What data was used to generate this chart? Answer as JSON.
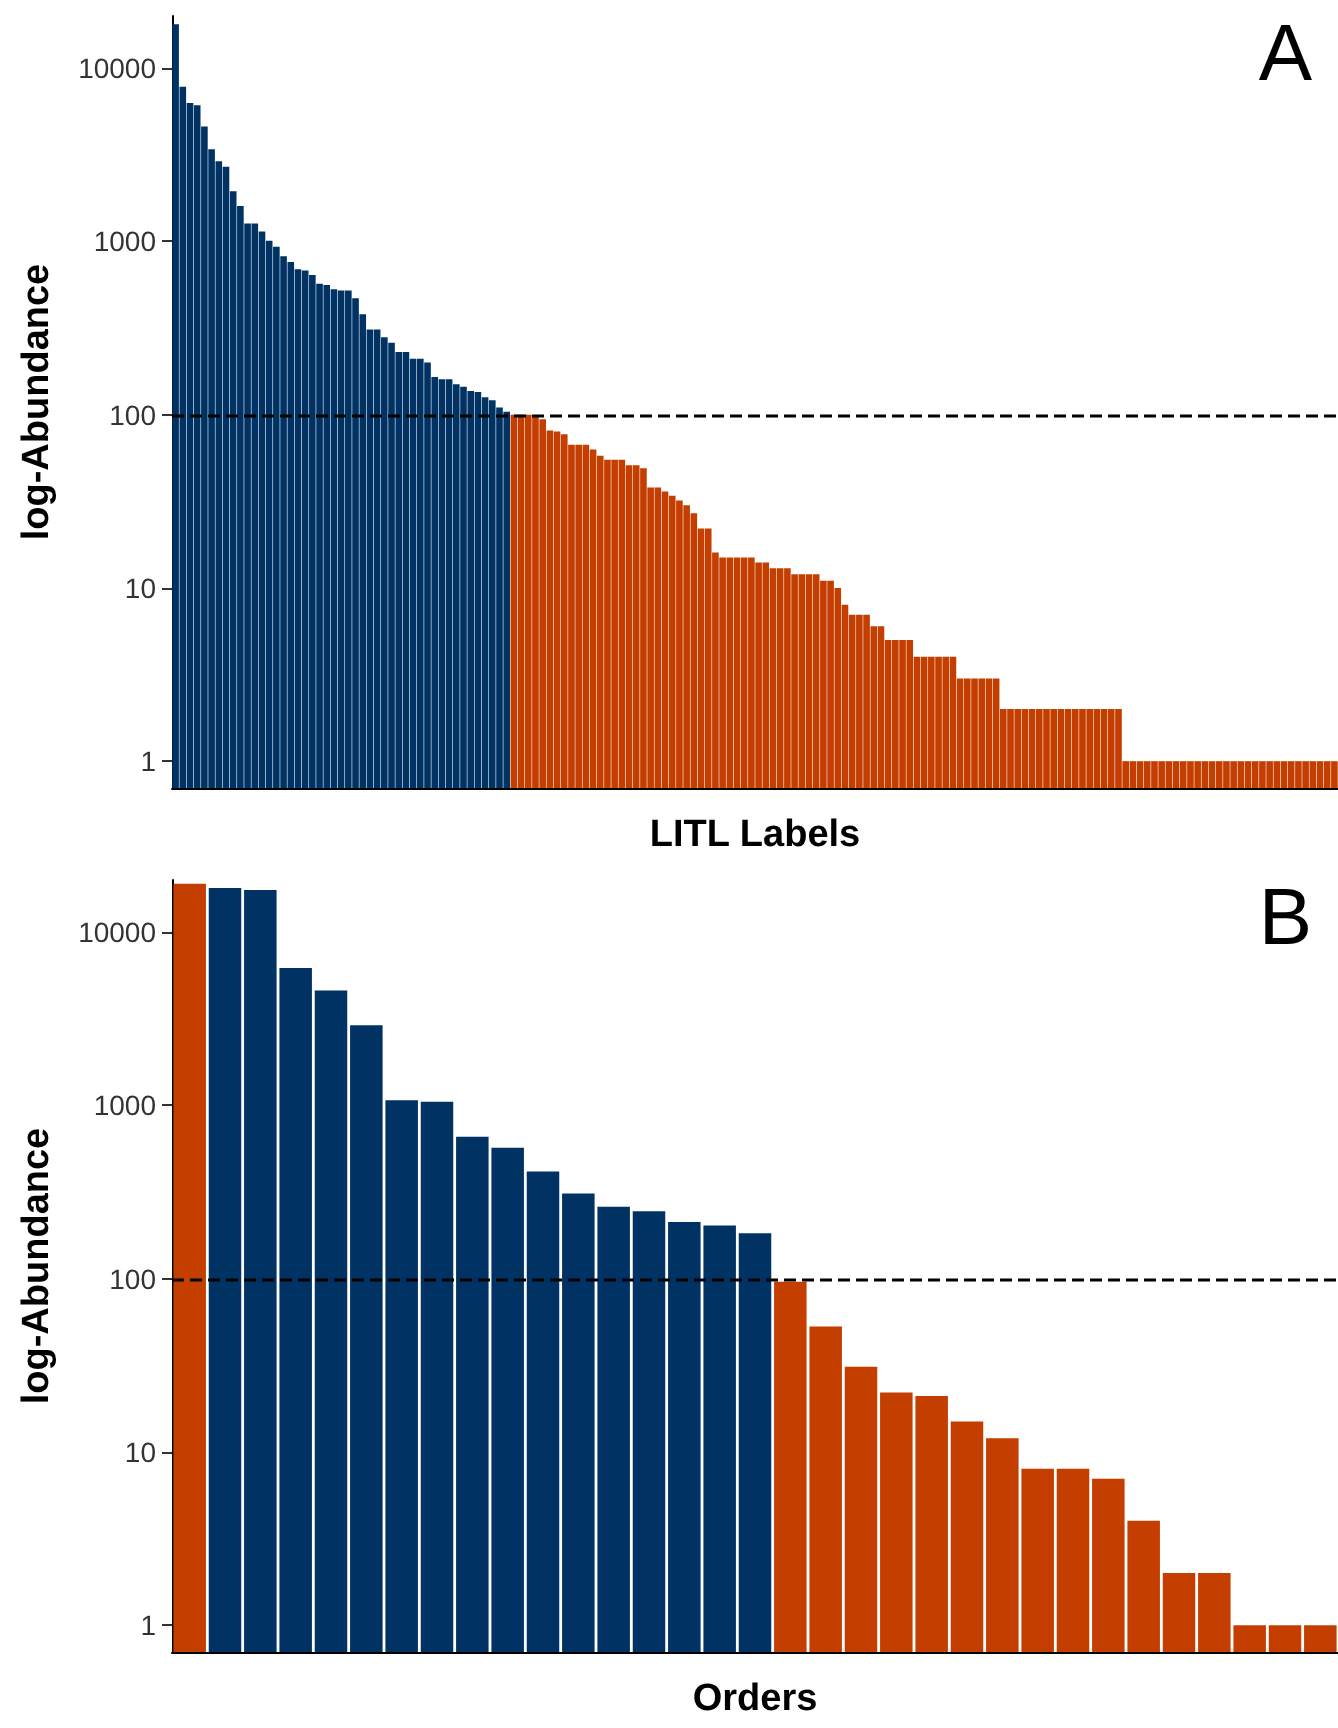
{
  "chart_data": [
    {
      "type": "bar",
      "title": "A",
      "xlabel": "LITL Labels",
      "ylabel": "log-Abundance",
      "log": true,
      "grid": false,
      "tick_labels": "y",
      "categories": [
        null,
        null,
        null,
        null,
        null,
        null,
        null,
        null,
        null,
        null,
        null,
        null,
        null,
        null,
        null,
        null,
        null,
        null,
        null,
        null,
        null,
        null,
        null,
        null,
        null,
        null,
        null,
        null,
        null,
        null,
        null,
        null,
        null,
        null,
        null,
        null,
        null,
        null,
        null,
        null,
        null,
        null,
        null,
        null,
        null,
        null,
        null,
        null,
        null,
        null,
        null,
        null,
        null,
        null,
        null,
        null,
        null,
        null,
        null,
        null,
        null,
        null,
        null,
        null,
        null,
        null,
        null,
        null,
        null,
        null,
        null,
        null,
        null,
        null,
        null,
        null,
        null,
        null,
        null,
        null,
        null,
        null,
        null,
        null,
        null,
        null,
        null,
        null,
        null,
        null,
        null,
        null,
        null,
        null,
        null,
        null,
        null,
        null,
        null,
        null,
        null,
        null,
        null,
        null,
        null,
        null,
        null,
        null,
        null,
        null,
        null,
        null,
        null,
        null,
        null,
        null,
        null,
        null,
        null,
        null,
        null,
        null,
        null,
        null,
        null,
        null,
        null,
        null,
        null,
        null,
        null,
        null,
        null,
        null,
        null,
        null,
        null,
        null,
        null,
        null,
        null,
        null,
        null,
        null,
        null,
        null,
        null,
        null,
        null,
        null,
        null,
        null,
        null,
        null,
        null,
        null,
        null,
        null,
        null,
        null,
        null,
        null
      ],
      "values": [
        17900,
        7800,
        6300,
        6100,
        4600,
        3400,
        2900,
        2700,
        1950,
        1600,
        1270,
        1270,
        1140,
        1010,
        930,
        820,
        760,
        690,
        680,
        640,
        570,
        560,
        530,
        520,
        520,
        470,
        380,
        310,
        310,
        280,
        260,
        230,
        230,
        210,
        210,
        200,
        165,
        160,
        160,
        150,
        145,
        137,
        135,
        126,
        121,
        110,
        104,
        100,
        100,
        100,
        98,
        94,
        81,
        80,
        77,
        67,
        67,
        67,
        63,
        58,
        55,
        55,
        55,
        51,
        51,
        49,
        38,
        38,
        36,
        34,
        32,
        30,
        27,
        22,
        22,
        16,
        15,
        15,
        15,
        15,
        15,
        14,
        14,
        13,
        13,
        13,
        12,
        12,
        12,
        12,
        11,
        11,
        10,
        8,
        7,
        7,
        7,
        6,
        6,
        5,
        5,
        5,
        5,
        4,
        4,
        4,
        4,
        4,
        4,
        3,
        3,
        3,
        3,
        3,
        3,
        2,
        2,
        2,
        2,
        2,
        2,
        2,
        2,
        2,
        2,
        2,
        2,
        2,
        2,
        2,
        2,
        2,
        1,
        1,
        1,
        1,
        1,
        1,
        1,
        1,
        1,
        1,
        1,
        1,
        1,
        1,
        1,
        1,
        1,
        1,
        1,
        1,
        1,
        1,
        1,
        1,
        1,
        1,
        1,
        1,
        1,
        1
      ],
      "colors": [
        "#003263",
        "#003263",
        "#003263",
        "#003263",
        "#003263",
        "#003263",
        "#003263",
        "#003263",
        "#003263",
        "#003263",
        "#003263",
        "#003263",
        "#003263",
        "#003263",
        "#003263",
        "#003263",
        "#003263",
        "#003263",
        "#003263",
        "#003263",
        "#003263",
        "#003263",
        "#003263",
        "#003263",
        "#003263",
        "#003263",
        "#003263",
        "#003263",
        "#003263",
        "#003263",
        "#003263",
        "#003263",
        "#003263",
        "#003263",
        "#003263",
        "#003263",
        "#003263",
        "#003263",
        "#003263",
        "#003263",
        "#003263",
        "#003263",
        "#003263",
        "#003263",
        "#003263",
        "#003263",
        "#003263",
        "#c43e00",
        "#c43e00",
        "#c43e00",
        "#c43e00",
        "#c43e00",
        "#c43e00",
        "#c43e00",
        "#c43e00",
        "#c43e00",
        "#c43e00",
        "#c43e00",
        "#c43e00",
        "#c43e00",
        "#c43e00",
        "#c43e00",
        "#c43e00",
        "#c43e00",
        "#c43e00",
        "#c43e00",
        "#c43e00",
        "#c43e00",
        "#c43e00",
        "#c43e00",
        "#c43e00",
        "#c43e00",
        "#c43e00",
        "#c43e00",
        "#c43e00",
        "#c43e00",
        "#c43e00",
        "#c43e00",
        "#c43e00",
        "#c43e00",
        "#c43e00",
        "#c43e00",
        "#c43e00",
        "#c43e00",
        "#c43e00",
        "#c43e00",
        "#c43e00",
        "#c43e00",
        "#c43e00",
        "#c43e00",
        "#c43e00",
        "#c43e00",
        "#c43e00",
        "#c43e00",
        "#c43e00",
        "#c43e00",
        "#c43e00",
        "#c43e00",
        "#c43e00",
        "#c43e00",
        "#c43e00",
        "#c43e00",
        "#c43e00",
        "#c43e00",
        "#c43e00",
        "#c43e00",
        "#c43e00",
        "#c43e00",
        "#c43e00",
        "#c43e00",
        "#c43e00",
        "#c43e00",
        "#c43e00",
        "#c43e00",
        "#c43e00",
        "#c43e00",
        "#c43e00",
        "#c43e00",
        "#c43e00",
        "#c43e00",
        "#c43e00",
        "#c43e00",
        "#c43e00",
        "#c43e00",
        "#c43e00",
        "#c43e00",
        "#c43e00",
        "#c43e00",
        "#c43e00",
        "#c43e00",
        "#c43e00",
        "#c43e00",
        "#c43e00",
        "#c43e00",
        "#c43e00",
        "#c43e00",
        "#c43e00",
        "#c43e00",
        "#c43e00",
        "#c43e00",
        "#c43e00",
        "#c43e00",
        "#c43e00",
        "#c43e00",
        "#c43e00",
        "#c43e00",
        "#c43e00",
        "#c43e00",
        "#c43e00",
        "#c43e00",
        "#c43e00",
        "#c43e00",
        "#c43e00",
        "#c43e00",
        "#c43e00",
        "#c43e00",
        "#c43e00",
        "#c43e00",
        "#c43e00",
        "#c43e00",
        "#c43e00",
        "#c43e00"
      ],
      "ylim": [
        0.7,
        20000
      ],
      "yticks": [
        1,
        10,
        100,
        1000,
        10000
      ],
      "ref_lines": [
        {
          "axis": "y",
          "value": 100,
          "line_style": "dashed",
          "color": "#000000"
        }
      ]
    },
    {
      "type": "bar",
      "title": "B",
      "xlabel": "Orders",
      "ylabel": "log-Abundance",
      "log": true,
      "grid": false,
      "tick_labels": "y",
      "categories": [
        null,
        null,
        null,
        null,
        null,
        null,
        null,
        null,
        null,
        null,
        null,
        null,
        null,
        null,
        null,
        null,
        null,
        null,
        null,
        null,
        null,
        null,
        null,
        null,
        null,
        null,
        null,
        null,
        null,
        null,
        null,
        null,
        null
      ],
      "values": [
        19000,
        18000,
        17500,
        6200,
        4600,
        2900,
        1070,
        1050,
        660,
        570,
        415,
        310,
        260,
        245,
        212,
        203,
        183,
        96,
        53,
        31,
        22,
        21,
        15,
        12,
        8,
        8,
        7,
        4,
        2,
        2,
        1,
        1,
        1
      ],
      "colors": [
        "#c43e00",
        "#003263",
        "#003263",
        "#003263",
        "#003263",
        "#003263",
        "#003263",
        "#003263",
        "#003263",
        "#003263",
        "#003263",
        "#003263",
        "#003263",
        "#003263",
        "#003263",
        "#003263",
        "#003263",
        "#c43e00",
        "#c43e00",
        "#c43e00",
        "#c43e00",
        "#c43e00",
        "#c43e00",
        "#c43e00",
        "#c43e00",
        "#c43e00",
        "#c43e00",
        "#c43e00",
        "#c43e00",
        "#c43e00",
        "#c43e00",
        "#c43e00",
        "#c43e00"
      ],
      "ylim": [
        0.7,
        20000
      ],
      "yticks": [
        1,
        10,
        100,
        1000,
        10000
      ],
      "ref_lines": [
        {
          "axis": "y",
          "value": 100,
          "line_style": "dashed",
          "color": "#000000"
        }
      ]
    }
  ]
}
